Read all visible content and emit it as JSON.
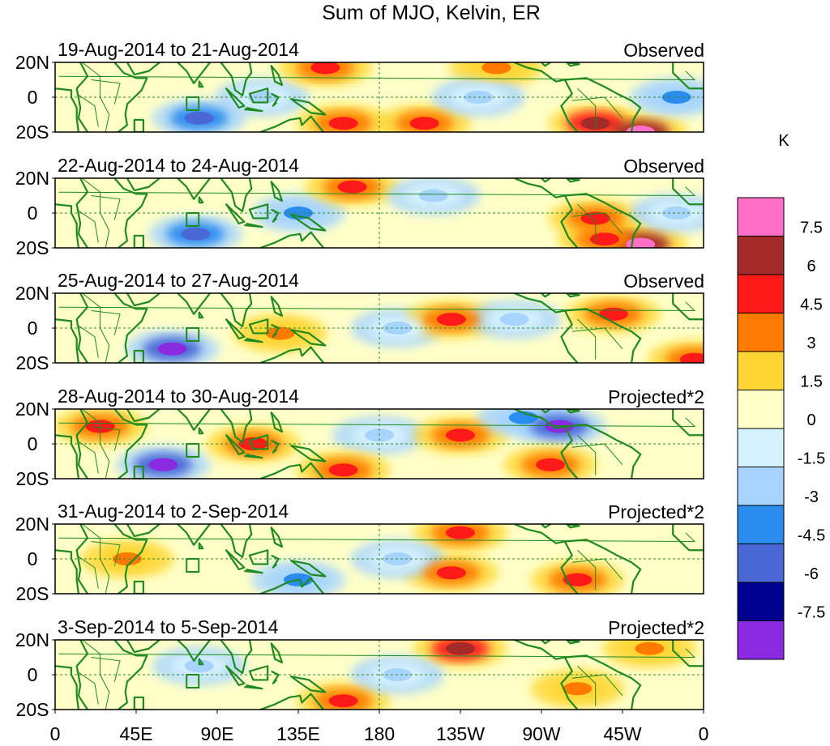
{
  "figure": {
    "title": "Sum of MJO, Kelvin, ER"
  },
  "map": {
    "lat_labels": [
      "20N",
      "0",
      "20S"
    ],
    "lon_labels": [
      "0",
      "45E",
      "90E",
      "135E",
      "180",
      "135W",
      "90W",
      "45W",
      "0"
    ]
  },
  "panels": [
    {
      "date_range": "19-Aug-2014 to 21-Aug-2014",
      "label": "Observed"
    },
    {
      "date_range": "22-Aug-2014 to 24-Aug-2014",
      "label": "Observed"
    },
    {
      "date_range": "25-Aug-2014 to 27-Aug-2014",
      "label": "Observed"
    },
    {
      "date_range": "28-Aug-2014 to 30-Aug-2014",
      "label": "Projected*2"
    },
    {
      "date_range": "31-Aug-2014 to 2-Sep-2014",
      "label": "Projected*2"
    },
    {
      "date_range": "3-Sep-2014 to 5-Sep-2014",
      "label": "Projected*2"
    }
  ],
  "colorbar": {
    "unit": "K",
    "tick_labels": [
      "7.5",
      "6",
      "4.5",
      "3",
      "1.5",
      "0",
      "-1.5",
      "-3",
      "-4.5",
      "-6",
      "-7.5"
    ],
    "colors": [
      "#ff6ec7",
      "#a52a2a",
      "#ff1a1a",
      "#ff7a00",
      "#ffd633",
      "#ffffc8",
      "#d6f2ff",
      "#a6d4ff",
      "#2b8cf0",
      "#4a68d6",
      "#000090",
      "#8a2be2"
    ]
  },
  "chart_data": {
    "type": "heatmap",
    "title": "Sum of MJO, Kelvin, ER",
    "variable_unit": "K",
    "lon_range": [
      0,
      360
    ],
    "lat_range": [
      -20,
      20
    ],
    "xlabel": "",
    "ylabel": "",
    "lon_tick_labels": [
      "0",
      "45E",
      "90E",
      "135E",
      "180",
      "135W",
      "90W",
      "45W",
      "0"
    ],
    "lat_tick_labels": [
      "20N",
      "0",
      "20S"
    ],
    "color_levels": [
      -7.5,
      -6,
      -4.5,
      -3,
      -1.5,
      0,
      1.5,
      3,
      4.5,
      6,
      7.5
    ],
    "panels": [
      {
        "period": "19-Aug-2014 to 21-Aug-2014",
        "type": "Observed",
        "anomalies": [
          {
            "lon": 115,
            "lat": 0,
            "value": -3
          },
          {
            "lon": 80,
            "lat": -12,
            "value": -6
          },
          {
            "lon": 150,
            "lat": 17,
            "value": 4.5
          },
          {
            "lon": 160,
            "lat": -15,
            "value": 4.5
          },
          {
            "lon": 205,
            "lat": -15,
            "value": 4.5
          },
          {
            "lon": 245,
            "lat": 17,
            "value": 3
          },
          {
            "lon": 300,
            "lat": -15,
            "value": 6
          },
          {
            "lon": 325,
            "lat": -20,
            "value": 7.5
          },
          {
            "lon": 235,
            "lat": 0,
            "value": -3
          },
          {
            "lon": 345,
            "lat": 0,
            "value": -4.5
          }
        ]
      },
      {
        "period": "22-Aug-2014 to 24-Aug-2014",
        "type": "Observed",
        "anomalies": [
          {
            "lon": 78,
            "lat": -12,
            "value": -6
          },
          {
            "lon": 135,
            "lat": 0,
            "value": -4.5
          },
          {
            "lon": 165,
            "lat": 15,
            "value": 4.5
          },
          {
            "lon": 300,
            "lat": -3,
            "value": 4.5
          },
          {
            "lon": 325,
            "lat": -18,
            "value": 7.5
          },
          {
            "lon": 210,
            "lat": 10,
            "value": -3
          },
          {
            "lon": 345,
            "lat": 0,
            "value": -3
          },
          {
            "lon": 305,
            "lat": -15,
            "value": 4.5
          }
        ]
      },
      {
        "period": "25-Aug-2014 to 27-Aug-2014",
        "type": "Observed",
        "anomalies": [
          {
            "lon": 65,
            "lat": -12,
            "value": -7.5
          },
          {
            "lon": 190,
            "lat": 0,
            "value": -3
          },
          {
            "lon": 220,
            "lat": 5,
            "value": 4.5
          },
          {
            "lon": 255,
            "lat": 5,
            "value": -3
          },
          {
            "lon": 310,
            "lat": 8,
            "value": 4.5
          },
          {
            "lon": 125,
            "lat": -3,
            "value": 3
          },
          {
            "lon": 355,
            "lat": -18,
            "value": 4.5
          }
        ]
      },
      {
        "period": "28-Aug-2014 to 30-Aug-2014",
        "type": "Projected*2",
        "anomalies": [
          {
            "lon": 60,
            "lat": -12,
            "value": -7.5
          },
          {
            "lon": 25,
            "lat": 10,
            "value": 4.5
          },
          {
            "lon": 110,
            "lat": 0,
            "value": 4.5
          },
          {
            "lon": 180,
            "lat": 5,
            "value": -3
          },
          {
            "lon": 225,
            "lat": 5,
            "value": 4.5
          },
          {
            "lon": 260,
            "lat": 15,
            "value": -4.5
          },
          {
            "lon": 280,
            "lat": 10,
            "value": -7.5
          },
          {
            "lon": 275,
            "lat": -12,
            "value": 4.5
          },
          {
            "lon": 160,
            "lat": -15,
            "value": 4.5
          }
        ]
      },
      {
        "period": "31-Aug-2014 to 2-Sep-2014",
        "type": "Projected*2",
        "anomalies": [
          {
            "lon": 225,
            "lat": 15,
            "value": 4.5
          },
          {
            "lon": 220,
            "lat": -8,
            "value": 4.5
          },
          {
            "lon": 290,
            "lat": -12,
            "value": 4.5
          },
          {
            "lon": 135,
            "lat": -12,
            "value": -4.5
          },
          {
            "lon": 190,
            "lat": 0,
            "value": -3
          },
          {
            "lon": 40,
            "lat": 0,
            "value": 3
          }
        ]
      },
      {
        "period": "3-Sep-2014 to 5-Sep-2014",
        "type": "Projected*2",
        "anomalies": [
          {
            "lon": 225,
            "lat": 15,
            "value": 6
          },
          {
            "lon": 160,
            "lat": -15,
            "value": 4.5
          },
          {
            "lon": 80,
            "lat": 5,
            "value": -3
          },
          {
            "lon": 190,
            "lat": 0,
            "value": -3
          },
          {
            "lon": 290,
            "lat": -8,
            "value": 3
          },
          {
            "lon": 330,
            "lat": 15,
            "value": 3
          }
        ]
      }
    ]
  }
}
